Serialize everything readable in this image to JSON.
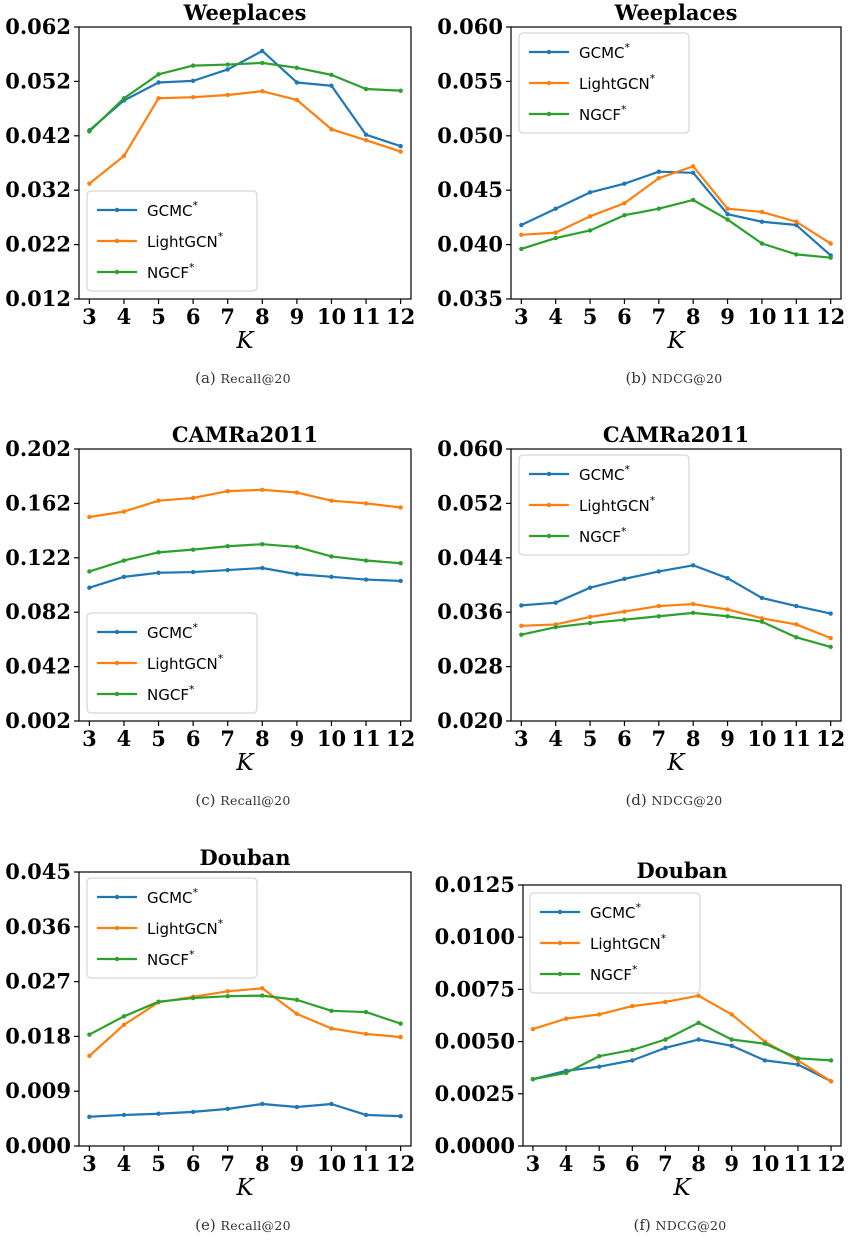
{
  "chart_data": [
    {
      "type": "line",
      "title": "Weeplaces",
      "xlabel": "K",
      "ylabel": "",
      "caption_label": "(a)",
      "caption_metric": "Recall@20",
      "x": [
        3,
        4,
        5,
        6,
        7,
        8,
        9,
        10,
        11,
        12
      ],
      "ylim": [
        0.012,
        0.062
      ],
      "yticks": [
        "0.012",
        "0.022",
        "0.032",
        "0.042",
        "0.052",
        "0.062"
      ],
      "legend_position": "lower-left",
      "series": [
        {
          "name": "GCMC",
          "color": "#1f77b4",
          "values": [
            0.043,
            0.0485,
            0.0518,
            0.0521,
            0.0542,
            0.0576,
            0.0518,
            0.0512,
            0.0422,
            0.0401
          ]
        },
        {
          "name": "LightGCN",
          "color": "#ff7f0e",
          "values": [
            0.0332,
            0.0383,
            0.0489,
            0.0491,
            0.0495,
            0.0502,
            0.0486,
            0.0432,
            0.0412,
            0.0391
          ]
        },
        {
          "name": "NGCF",
          "color": "#2ca02c",
          "values": [
            0.0428,
            0.0489,
            0.0533,
            0.0549,
            0.0551,
            0.0554,
            0.0545,
            0.0532,
            0.0506,
            0.0503
          ]
        }
      ]
    },
    {
      "type": "line",
      "title": "Weeplaces",
      "xlabel": "K",
      "ylabel": "",
      "caption_label": "(b)",
      "caption_metric": "NDCG@20",
      "x": [
        3,
        4,
        5,
        6,
        7,
        8,
        9,
        10,
        11,
        12
      ],
      "ylim": [
        0.035,
        0.06
      ],
      "yticks": [
        "0.035",
        "0.040",
        "0.045",
        "0.050",
        "0.055",
        "0.060"
      ],
      "legend_position": "upper-left",
      "series": [
        {
          "name": "GCMC",
          "color": "#1f77b4",
          "values": [
            0.0418,
            0.0433,
            0.0448,
            0.0456,
            0.0467,
            0.0466,
            0.0428,
            0.0421,
            0.0418,
            0.039
          ]
        },
        {
          "name": "LightGCN",
          "color": "#ff7f0e",
          "values": [
            0.0409,
            0.0411,
            0.0426,
            0.0438,
            0.0461,
            0.0472,
            0.0433,
            0.043,
            0.0421,
            0.0401
          ]
        },
        {
          "name": "NGCF",
          "color": "#2ca02c",
          "values": [
            0.0396,
            0.0406,
            0.0413,
            0.0427,
            0.0433,
            0.0441,
            0.0423,
            0.0401,
            0.0391,
            0.0388
          ]
        }
      ]
    },
    {
      "type": "line",
      "title": "CAMRa2011",
      "xlabel": "K",
      "ylabel": "",
      "caption_label": "(c)",
      "caption_metric": "Recall@20",
      "x": [
        3,
        4,
        5,
        6,
        7,
        8,
        9,
        10,
        11,
        12
      ],
      "ylim": [
        0.002,
        0.202
      ],
      "yticks": [
        "0.002",
        "0.042",
        "0.082",
        "0.122",
        "0.162",
        "0.202"
      ],
      "legend_position": "lower-left",
      "series": [
        {
          "name": "GCMC",
          "color": "#1f77b4",
          "values": [
            0.1,
            0.108,
            0.111,
            0.1115,
            0.113,
            0.1145,
            0.11,
            0.108,
            0.106,
            0.105
          ]
        },
        {
          "name": "LightGCN",
          "color": "#ff7f0e",
          "values": [
            0.152,
            0.156,
            0.164,
            0.166,
            0.171,
            0.172,
            0.17,
            0.164,
            0.162,
            0.159
          ]
        },
        {
          "name": "NGCF",
          "color": "#2ca02c",
          "values": [
            0.112,
            0.12,
            0.126,
            0.128,
            0.1305,
            0.132,
            0.13,
            0.123,
            0.12,
            0.118
          ]
        }
      ]
    },
    {
      "type": "line",
      "title": "CAMRa2011",
      "xlabel": "K",
      "ylabel": "",
      "caption_label": "(d)",
      "caption_metric": "NDCG@20",
      "x": [
        3,
        4,
        5,
        6,
        7,
        8,
        9,
        10,
        11,
        12
      ],
      "ylim": [
        0.02,
        0.06
      ],
      "yticks": [
        "0.020",
        "0.028",
        "0.036",
        "0.044",
        "0.052",
        "0.060"
      ],
      "legend_position": "upper-left",
      "series": [
        {
          "name": "GCMC",
          "color": "#1f77b4",
          "values": [
            0.037,
            0.0374,
            0.0396,
            0.0409,
            0.042,
            0.0429,
            0.041,
            0.0381,
            0.0369,
            0.0358
          ]
        },
        {
          "name": "LightGCN",
          "color": "#ff7f0e",
          "values": [
            0.034,
            0.0342,
            0.0353,
            0.0361,
            0.0369,
            0.0372,
            0.0364,
            0.0351,
            0.0342,
            0.0322
          ]
        },
        {
          "name": "NGCF",
          "color": "#2ca02c",
          "values": [
            0.0327,
            0.0338,
            0.0344,
            0.0349,
            0.0354,
            0.0359,
            0.0354,
            0.0346,
            0.0323,
            0.0309
          ]
        }
      ]
    },
    {
      "type": "line",
      "title": "Douban",
      "xlabel": "K",
      "ylabel": "",
      "caption_label": "(e)",
      "caption_metric": "Recall@20",
      "x": [
        3,
        4,
        5,
        6,
        7,
        8,
        9,
        10,
        11,
        12
      ],
      "ylim": [
        0.0,
        0.045
      ],
      "yticks": [
        "0.000",
        "0.009",
        "0.018",
        "0.027",
        "0.036",
        "0.045"
      ],
      "legend_position": "upper-left",
      "series": [
        {
          "name": "GCMC",
          "color": "#1f77b4",
          "values": [
            0.0048,
            0.0051,
            0.0053,
            0.0056,
            0.0061,
            0.0069,
            0.0064,
            0.0069,
            0.0051,
            0.0049
          ]
        },
        {
          "name": "LightGCN",
          "color": "#ff7f0e",
          "values": [
            0.0148,
            0.0199,
            0.0236,
            0.0245,
            0.0254,
            0.0259,
            0.0217,
            0.0193,
            0.0184,
            0.0179
          ]
        },
        {
          "name": "NGCF",
          "color": "#2ca02c",
          "values": [
            0.0183,
            0.0213,
            0.0237,
            0.0243,
            0.0246,
            0.0247,
            0.024,
            0.0222,
            0.022,
            0.0201
          ]
        }
      ]
    },
    {
      "type": "line",
      "title": "Douban",
      "xlabel": "K",
      "ylabel": "",
      "caption_label": "(f)",
      "caption_metric": "NDCG@20",
      "x": [
        3,
        4,
        5,
        6,
        7,
        8,
        9,
        10,
        11,
        12
      ],
      "ylim": [
        0.0,
        0.0125
      ],
      "yticks": [
        "0.0000",
        "0.0025",
        "0.0050",
        "0.0075",
        "0.0100",
        "0.0125"
      ],
      "legend_position": "upper-left",
      "series": [
        {
          "name": "GCMC",
          "color": "#1f77b4",
          "values": [
            0.0032,
            0.0036,
            0.0038,
            0.0041,
            0.0047,
            0.0051,
            0.0048,
            0.0041,
            0.0039,
            0.0031
          ]
        },
        {
          "name": "LightGCN",
          "color": "#ff7f0e",
          "values": [
            0.0056,
            0.0061,
            0.0063,
            0.0067,
            0.0069,
            0.0072,
            0.0063,
            0.005,
            0.0041,
            0.0031
          ]
        },
        {
          "name": "NGCF",
          "color": "#2ca02c",
          "values": [
            0.0032,
            0.0035,
            0.0043,
            0.0046,
            0.0051,
            0.0059,
            0.0051,
            0.0049,
            0.0042,
            0.0041
          ]
        }
      ]
    }
  ],
  "legend_superscript": "*"
}
